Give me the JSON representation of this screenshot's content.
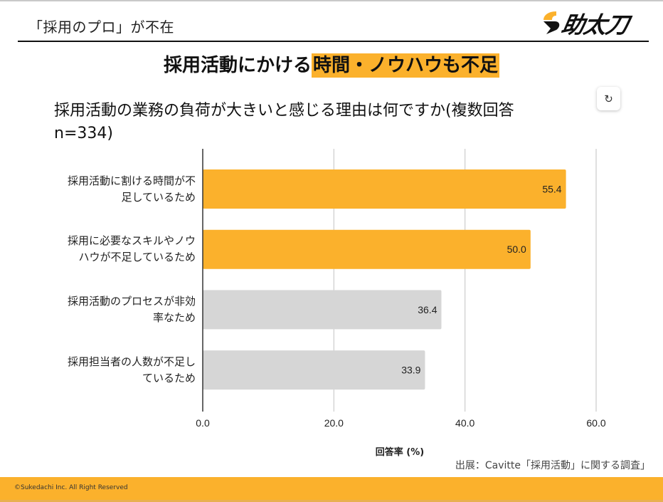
{
  "header": {
    "title": "「採用のプロ」が不在",
    "logo_text": "助太刀",
    "logo_icon": "sukedachi-logo-icon"
  },
  "headline": {
    "plain": "採用活動にかける",
    "highlight": "時間・ノウハウも不足"
  },
  "refresh_button": {
    "icon": "refresh-icon",
    "glyph": "↻"
  },
  "colors": {
    "accent": "#fbb12c",
    "bar_gray": "#d6d6d6",
    "grid": "#cccccc",
    "axis": "#333333"
  },
  "chart_data": {
    "type": "bar",
    "orientation": "horizontal",
    "title": "採用活動の業務の負荷が大きいと感じる理由は何ですか(複数回答 n=334)",
    "title_lines": [
      "採用活動の業務の負荷が大きいと感じる理由は何ですか(複数回答",
      "n=334)"
    ],
    "categories": [
      "採用活動に割ける時間が不足しているため",
      "採用に必要なスキルやノウハウが不足しているため",
      "採用活動のプロセスが非効率なため",
      "採用担当者の人数が不足しているため"
    ],
    "category_lines": [
      [
        "採用活動に割ける時間が不",
        "足しているため"
      ],
      [
        "採用に必要なスキルやノウ",
        "ハウが不足しているため"
      ],
      [
        "採用活動のプロセスが非効",
        "率なため"
      ],
      [
        "採用担当者の人数が不足し",
        "ているため"
      ]
    ],
    "values": [
      55.4,
      50.0,
      36.4,
      33.9
    ],
    "value_labels": [
      "55.4",
      "50.0",
      "36.4",
      "33.9"
    ],
    "highlighted": [
      true,
      true,
      false,
      false
    ],
    "xlabel": "回答率 (%)",
    "ylabel": "",
    "xlim": [
      0,
      60
    ],
    "xticks": [
      0,
      20,
      40,
      60
    ],
    "xtick_labels": [
      "0.0",
      "20.0",
      "40.0",
      "60.0"
    ],
    "grid": true,
    "legend": "none"
  },
  "source": "出展：Cavitte「採用活動」に関する調査」",
  "footer": {
    "copyright": "©Sukedachi Inc. All Right Reserved"
  }
}
